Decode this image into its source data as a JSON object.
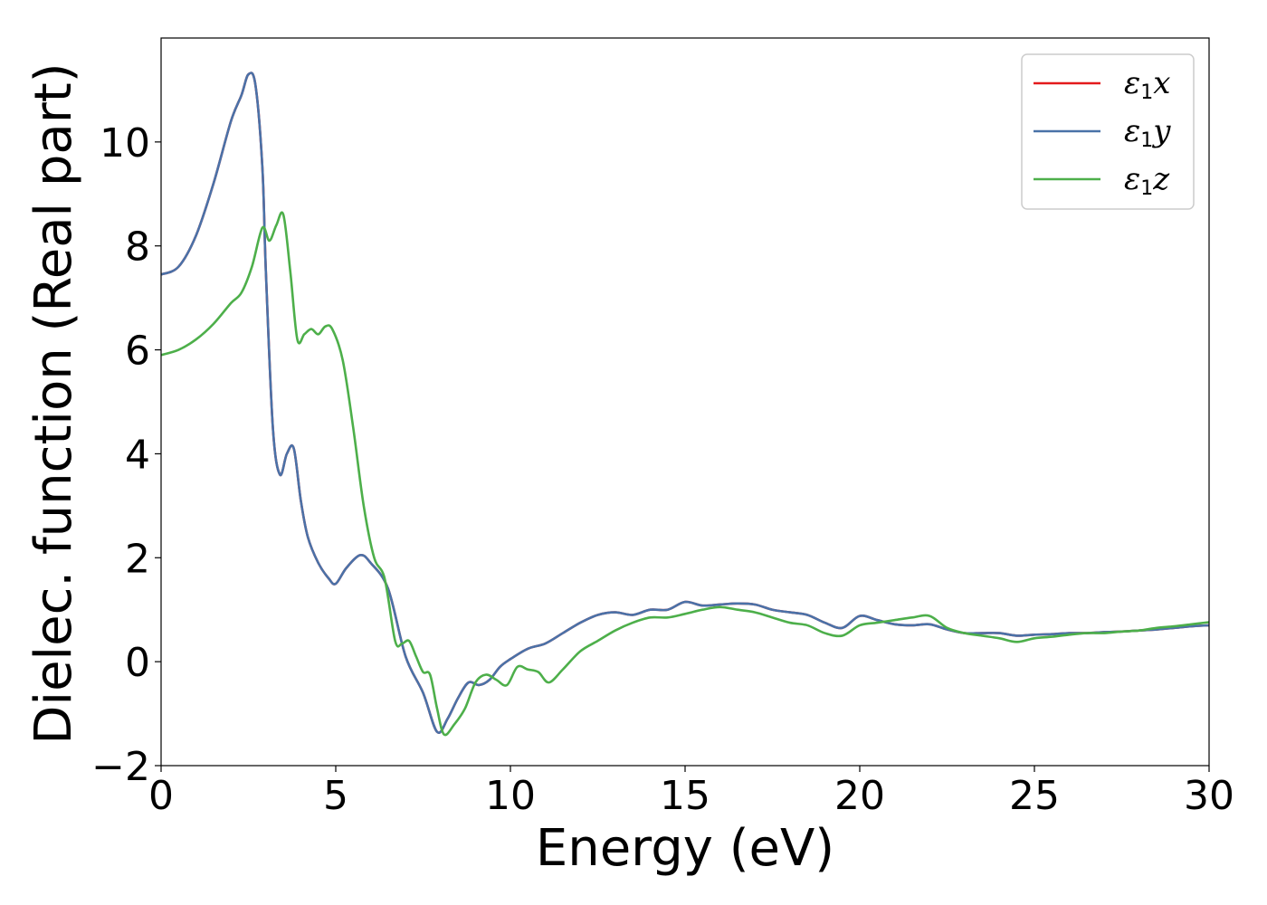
{
  "chart_data": {
    "type": "line",
    "title": "",
    "xlabel": "Energy (eV)",
    "ylabel": "Dielec. function (Real part)",
    "xlim": [
      0,
      30
    ],
    "ylim": [
      -2,
      12
    ],
    "x_ticks": [
      0,
      5,
      10,
      15,
      20,
      25,
      30
    ],
    "y_ticks": [
      -2,
      0,
      2,
      4,
      6,
      8,
      10
    ],
    "y_tick_labels": [
      "−2",
      "0",
      "2",
      "4",
      "6",
      "8",
      "10"
    ],
    "grid": false,
    "legend_position": "top-right",
    "series": [
      {
        "name": "ε1x",
        "legend_base": "ε",
        "legend_sub": "1",
        "legend_var": "x",
        "color": "#e41a1c",
        "x": [
          0,
          0.5,
          1,
          1.5,
          2,
          2.3,
          2.5,
          2.7,
          2.9,
          3.0,
          3.2,
          3.4,
          3.6,
          3.8,
          4.0,
          4.2,
          4.5,
          4.8,
          5.0,
          5.3,
          5.7,
          6.0,
          6.5,
          7.0,
          7.5,
          7.9,
          8.2,
          8.5,
          8.8,
          9.1,
          9.4,
          9.7,
          10,
          10.5,
          11,
          11.5,
          12,
          12.5,
          13,
          13.5,
          14,
          14.5,
          15,
          15.5,
          16,
          16.5,
          17,
          17.5,
          18,
          18.5,
          19,
          19.5,
          20,
          20.5,
          21,
          21.5,
          22,
          22.5,
          23,
          23.5,
          24,
          24.5,
          25,
          25.5,
          26,
          26.5,
          27,
          27.5,
          28,
          28.5,
          29,
          29.5,
          30
        ],
        "y": [
          7.45,
          7.6,
          8.2,
          9.2,
          10.4,
          10.9,
          11.3,
          11.1,
          9.5,
          7.5,
          4.5,
          3.6,
          4.0,
          4.1,
          3.1,
          2.4,
          1.9,
          1.6,
          1.5,
          1.8,
          2.05,
          1.9,
          1.4,
          0.1,
          -0.6,
          -1.35,
          -1.1,
          -0.7,
          -0.4,
          -0.45,
          -0.35,
          -0.1,
          0.05,
          0.25,
          0.35,
          0.55,
          0.75,
          0.9,
          0.95,
          0.9,
          1.0,
          1.0,
          1.15,
          1.08,
          1.1,
          1.12,
          1.1,
          1.0,
          0.95,
          0.9,
          0.75,
          0.65,
          0.88,
          0.8,
          0.72,
          0.7,
          0.72,
          0.62,
          0.55,
          0.55,
          0.55,
          0.5,
          0.52,
          0.53,
          0.55,
          0.55,
          0.57,
          0.58,
          0.6,
          0.62,
          0.65,
          0.68,
          0.7
        ]
      },
      {
        "name": "ε1y",
        "legend_base": "ε",
        "legend_sub": "1",
        "legend_var": "y",
        "color": "#4a72a8",
        "x": [
          0,
          0.5,
          1,
          1.5,
          2,
          2.3,
          2.5,
          2.7,
          2.9,
          3.0,
          3.2,
          3.4,
          3.6,
          3.8,
          4.0,
          4.2,
          4.5,
          4.8,
          5.0,
          5.3,
          5.7,
          6.0,
          6.5,
          7.0,
          7.5,
          7.9,
          8.2,
          8.5,
          8.8,
          9.1,
          9.4,
          9.7,
          10,
          10.5,
          11,
          11.5,
          12,
          12.5,
          13,
          13.5,
          14,
          14.5,
          15,
          15.5,
          16,
          16.5,
          17,
          17.5,
          18,
          18.5,
          19,
          19.5,
          20,
          20.5,
          21,
          21.5,
          22,
          22.5,
          23,
          23.5,
          24,
          24.5,
          25,
          25.5,
          26,
          26.5,
          27,
          27.5,
          28,
          28.5,
          29,
          29.5,
          30
        ],
        "y": [
          7.45,
          7.6,
          8.2,
          9.2,
          10.4,
          10.9,
          11.3,
          11.1,
          9.5,
          7.5,
          4.5,
          3.6,
          4.0,
          4.1,
          3.1,
          2.4,
          1.9,
          1.6,
          1.5,
          1.8,
          2.05,
          1.9,
          1.4,
          0.1,
          -0.6,
          -1.35,
          -1.1,
          -0.7,
          -0.4,
          -0.45,
          -0.35,
          -0.1,
          0.05,
          0.25,
          0.35,
          0.55,
          0.75,
          0.9,
          0.95,
          0.9,
          1.0,
          1.0,
          1.15,
          1.08,
          1.1,
          1.12,
          1.1,
          1.0,
          0.95,
          0.9,
          0.75,
          0.65,
          0.88,
          0.8,
          0.72,
          0.7,
          0.72,
          0.62,
          0.55,
          0.55,
          0.55,
          0.5,
          0.52,
          0.53,
          0.55,
          0.55,
          0.57,
          0.58,
          0.6,
          0.62,
          0.65,
          0.68,
          0.7
        ]
      },
      {
        "name": "ε1z",
        "legend_base": "ε",
        "legend_sub": "1",
        "legend_var": "z",
        "color": "#4daf4a",
        "x": [
          0,
          0.5,
          1,
          1.5,
          2,
          2.3,
          2.6,
          2.9,
          3.1,
          3.3,
          3.5,
          3.7,
          3.9,
          4.1,
          4.3,
          4.5,
          4.7,
          4.9,
          5.2,
          5.5,
          5.8,
          6.1,
          6.4,
          6.7,
          6.9,
          7.1,
          7.3,
          7.5,
          7.7,
          7.9,
          8.1,
          8.4,
          8.7,
          9.0,
          9.3,
          9.6,
          9.9,
          10.2,
          10.5,
          10.8,
          11.1,
          11.5,
          12,
          12.5,
          13,
          13.5,
          14,
          14.5,
          15,
          15.5,
          16,
          16.5,
          17,
          17.5,
          18,
          18.5,
          19,
          19.5,
          20,
          20.5,
          21,
          21.5,
          22,
          22.5,
          23,
          23.5,
          24,
          24.5,
          25,
          25.5,
          26,
          26.5,
          27,
          27.5,
          28,
          28.5,
          29,
          29.5,
          30
        ],
        "y": [
          5.9,
          6.0,
          6.2,
          6.5,
          6.9,
          7.1,
          7.6,
          8.35,
          8.1,
          8.4,
          8.6,
          7.5,
          6.2,
          6.3,
          6.4,
          6.3,
          6.45,
          6.4,
          5.8,
          4.5,
          3.0,
          2.0,
          1.6,
          0.4,
          0.35,
          0.4,
          0.1,
          -0.2,
          -0.25,
          -0.9,
          -1.4,
          -1.2,
          -0.9,
          -0.4,
          -0.25,
          -0.35,
          -0.45,
          -0.1,
          -0.15,
          -0.2,
          -0.4,
          -0.15,
          0.2,
          0.4,
          0.6,
          0.75,
          0.85,
          0.85,
          0.92,
          1.0,
          1.05,
          1.0,
          0.95,
          0.85,
          0.75,
          0.7,
          0.55,
          0.5,
          0.7,
          0.75,
          0.8,
          0.85,
          0.88,
          0.65,
          0.55,
          0.5,
          0.45,
          0.38,
          0.45,
          0.48,
          0.52,
          0.55,
          0.55,
          0.58,
          0.6,
          0.65,
          0.68,
          0.72,
          0.76
        ]
      }
    ]
  }
}
